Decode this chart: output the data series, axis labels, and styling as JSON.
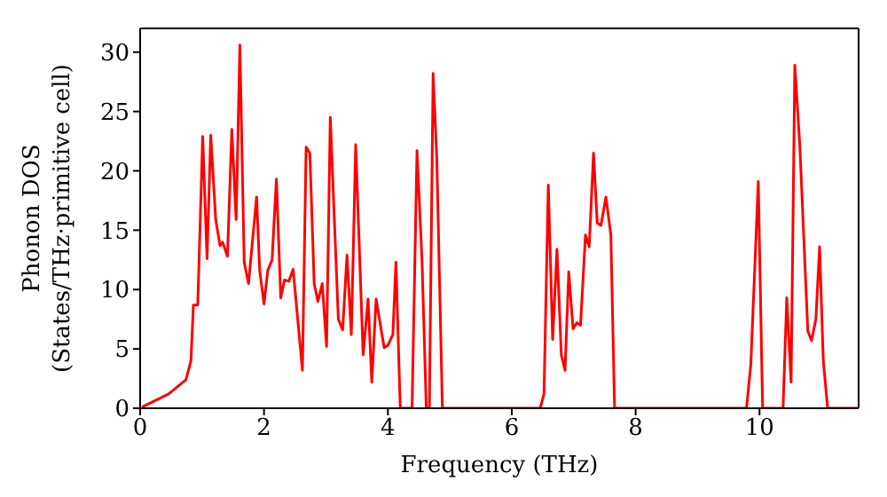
{
  "chart_data": {
    "type": "line",
    "xlabel": "Frequency (THz)",
    "ylabel": "Phonon DOS\n(States/THz·primitive cell)",
    "x": [
      0.03,
      0.46,
      0.74,
      0.82,
      0.86,
      0.93,
      1.01,
      1.08,
      1.14,
      1.22,
      1.29,
      1.33,
      1.41,
      1.48,
      1.55,
      1.61,
      1.68,
      1.75,
      1.88,
      1.93,
      2.0,
      2.06,
      2.13,
      2.2,
      2.27,
      2.33,
      2.4,
      2.47,
      2.62,
      2.68,
      2.74,
      2.81,
      2.87,
      2.94,
      3.01,
      3.07,
      3.2,
      3.27,
      3.34,
      3.41,
      3.48,
      3.6,
      3.68,
      3.74,
      3.81,
      3.94,
      4.0,
      4.08,
      4.13,
      4.2,
      4.39,
      4.47,
      4.55,
      4.62,
      4.67,
      4.73,
      4.79,
      4.88,
      6.46,
      6.52,
      6.59,
      6.66,
      6.73,
      6.8,
      6.86,
      6.92,
      6.99,
      7.05,
      7.11,
      7.19,
      7.25,
      7.32,
      7.38,
      7.44,
      7.52,
      7.6,
      7.66,
      9.79,
      9.86,
      9.98,
      10.05,
      10.38,
      10.44,
      10.51,
      10.57,
      10.65,
      10.78,
      10.84,
      10.91,
      10.97,
      11.03,
      11.1,
      11.6
    ],
    "series": [
      {
        "color": "#ff0000",
        "values": [
          0.1,
          1.2,
          2.4,
          4,
          8.7,
          8.7,
          22.9,
          12.6,
          23,
          15.9,
          13.7,
          14,
          12.8,
          23.5,
          15.9,
          30.6,
          12.3,
          10.5,
          17.8,
          11.6,
          8.8,
          11.6,
          12.5,
          19.3,
          9.3,
          10.8,
          10.7,
          11.7,
          3.2,
          22,
          21.5,
          10.5,
          9,
          10.5,
          5.2,
          24.5,
          7.5,
          6.6,
          12.9,
          6.2,
          22.2,
          4.5,
          9.2,
          2.2,
          9.2,
          5.1,
          5.3,
          6.2,
          12.3,
          0,
          0,
          21.7,
          12.6,
          0,
          0,
          28.2,
          21,
          0,
          0,
          1.2,
          18.8,
          5.8,
          13.4,
          4.5,
          3.2,
          11.5,
          6.7,
          7.2,
          7,
          14.6,
          13.6,
          21.5,
          15.6,
          15.4,
          17.8,
          14.6,
          0,
          0,
          3.7,
          19.1,
          0,
          0,
          9.3,
          2.2,
          28.9,
          22.2,
          6.5,
          5.7,
          7.5,
          13.6,
          4,
          0,
          0
        ]
      }
    ],
    "xlim": [
      0,
      11.6
    ],
    "ylim": [
      0,
      32
    ],
    "xticks": [
      0,
      2,
      4,
      6,
      8,
      10
    ],
    "yticks": [
      0,
      5,
      10,
      15,
      20,
      25,
      30
    ],
    "grid": false,
    "legend": false,
    "marker": "none",
    "line_style": "solid"
  }
}
